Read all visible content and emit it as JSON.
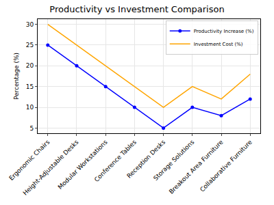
{
  "chart_data": {
    "type": "line",
    "title": "Productivity vs Investment Comparison",
    "y_label": "Percentage (%)",
    "categories": [
      "Ergonomic Chairs",
      "Height-Adjustable Desks",
      "Modular Workstations",
      "Conference Tables",
      "Reception Desks",
      "Storage Solutions",
      "Breakout Area Furniture",
      "Collaborative Furniture"
    ],
    "series": [
      {
        "name": "Productivity Increase (%)",
        "color": "#0000ff",
        "marker": "circle",
        "line_style": "solid",
        "values": [
          25,
          20,
          15,
          10,
          5,
          10,
          8,
          12
        ]
      },
      {
        "name": "Investment Cost (%)",
        "color": "#ffa500",
        "marker": "none",
        "line_style": "solid",
        "values": [
          30,
          25,
          20,
          15,
          10,
          15,
          12,
          18
        ]
      }
    ],
    "ylim": [
      3.75,
      31.25
    ],
    "yticks": [
      5,
      10,
      15,
      20,
      25,
      30
    ],
    "grid": true,
    "legend": "upper right"
  }
}
